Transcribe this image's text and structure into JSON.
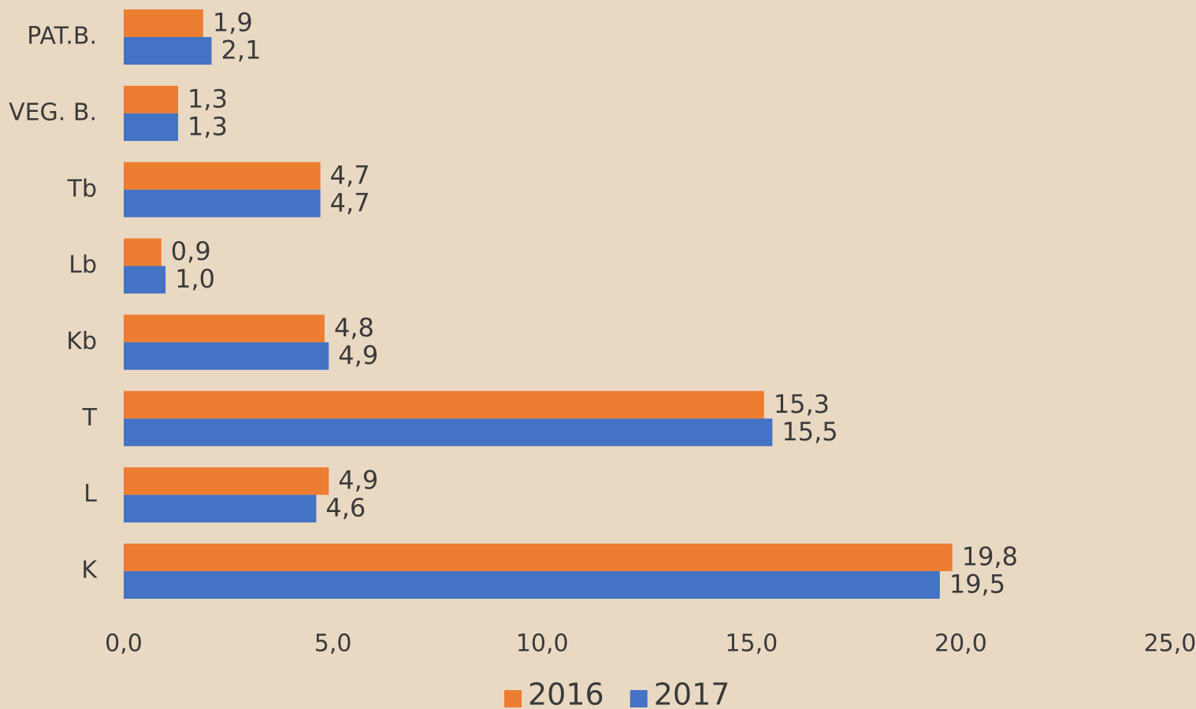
{
  "chart_data": {
    "type": "bar",
    "orientation": "horizontal",
    "categories": [
      "PAT.B.",
      "VEG. B.",
      "Tb",
      "Lb",
      "Kb",
      "T",
      "L",
      "K"
    ],
    "series": [
      {
        "name": "2016",
        "color": "#ED7D31",
        "values": [
          1.9,
          1.3,
          4.7,
          0.9,
          4.8,
          15.3,
          4.9,
          19.8
        ],
        "value_labels": [
          "1,9",
          "1,3",
          "4,7",
          "0,9",
          "4,8",
          "15,3",
          "4,9",
          "19,8"
        ]
      },
      {
        "name": "2017",
        "color": "#4472C4",
        "values": [
          2.1,
          1.3,
          4.7,
          1.0,
          4.9,
          15.5,
          4.6,
          19.5
        ],
        "value_labels": [
          "2,1",
          "1,3",
          "4,7",
          "1,0",
          "4,9",
          "15,5",
          "4,6",
          "19,5"
        ]
      }
    ],
    "xlim": [
      0,
      25
    ],
    "xticks": [
      {
        "value": 0,
        "label": "0,0"
      },
      {
        "value": 5,
        "label": "5,0"
      },
      {
        "value": 10,
        "label": "10,0"
      },
      {
        "value": 15,
        "label": "15,0"
      },
      {
        "value": 20,
        "label": "20,0"
      },
      {
        "value": 25,
        "label": "25,0"
      }
    ],
    "legend": "bottom",
    "grid": false
  }
}
